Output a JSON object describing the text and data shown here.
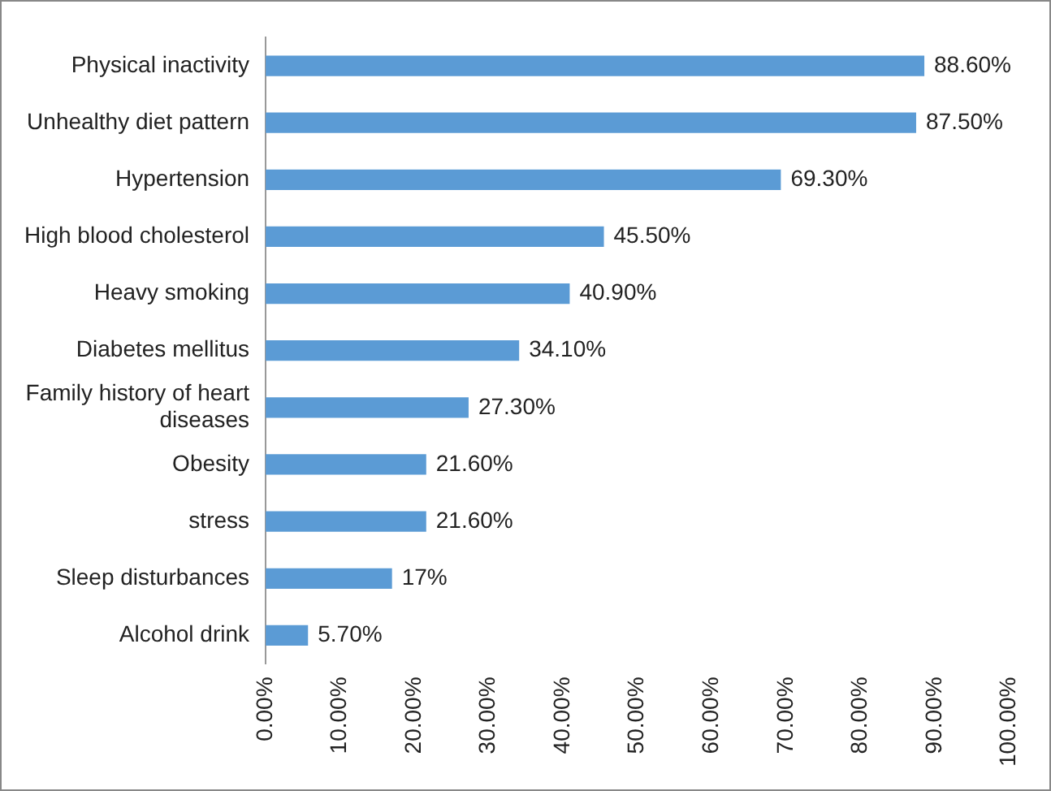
{
  "chart_data": {
    "type": "bar",
    "orientation": "horizontal",
    "categories": [
      "Physical inactivity",
      "Unhealthy diet pattern",
      "Hypertension",
      "High blood cholesterol",
      "Heavy smoking",
      "Diabetes mellitus",
      "Family history of heart diseases",
      "Obesity",
      "stress",
      "Sleep disturbances",
      "Alcohol drink"
    ],
    "values": [
      88.6,
      87.5,
      69.3,
      45.5,
      40.9,
      34.1,
      27.3,
      21.6,
      21.6,
      17,
      5.7
    ],
    "value_labels": [
      "88.60%",
      "87.50%",
      "69.30%",
      "45.50%",
      "40.90%",
      "34.10%",
      "27.30%",
      "21.60%",
      "21.60%",
      "17%",
      "5.70%"
    ],
    "color": "#5b9bd5",
    "xlim": [
      0,
      100
    ],
    "xticks": [
      {
        "value": 0,
        "label": "0.00%"
      },
      {
        "value": 10,
        "label": "10.00%"
      },
      {
        "value": 20,
        "label": "20.00%"
      },
      {
        "value": 30,
        "label": "30.00%"
      },
      {
        "value": 40,
        "label": "40.00%"
      },
      {
        "value": 50,
        "label": "50.00%"
      },
      {
        "value": 60,
        "label": "60.00%"
      },
      {
        "value": 70,
        "label": "70.00%"
      },
      {
        "value": 80,
        "label": "80.00%"
      },
      {
        "value": 90,
        "label": "90.00%"
      },
      {
        "value": 100,
        "label": "100.00%"
      }
    ],
    "grid": false,
    "legend": false
  }
}
